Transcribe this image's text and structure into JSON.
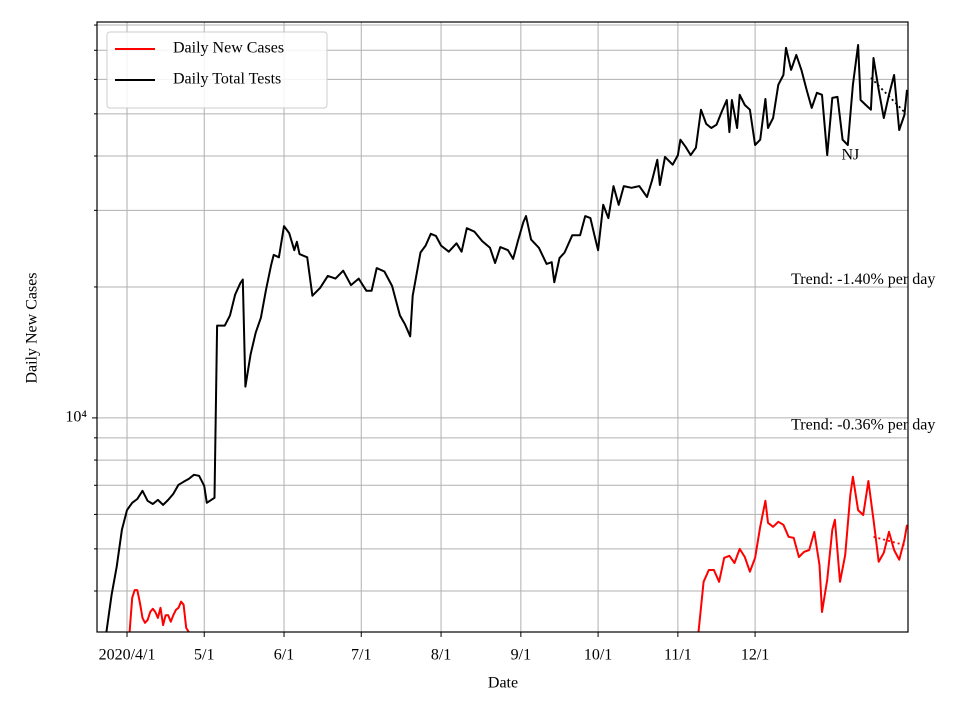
{
  "chart_data": {
    "type": "line",
    "ylabel": "Daily New Cases",
    "xlabel": "Date",
    "log_y": true,
    "grid": true,
    "legend": "upper left",
    "xlim": [
      -11.66,
      303.4
    ],
    "ylim": [
      3220,
      81300
    ],
    "xticks": [
      {
        "value": 0,
        "label": "2020/4/1"
      },
      {
        "value": 30,
        "label": "5/1"
      },
      {
        "value": 61,
        "label": "6/1"
      },
      {
        "value": 91,
        "label": "7/1"
      },
      {
        "value": 122,
        "label": "8/1"
      },
      {
        "value": 153,
        "label": "9/1"
      },
      {
        "value": 183,
        "label": "10/1"
      },
      {
        "value": 214,
        "label": "11/1"
      },
      {
        "value": 244,
        "label": "12/1"
      }
    ],
    "yticks": [
      {
        "value": 10000,
        "label": "10⁴"
      }
    ],
    "yminorticks": [
      4000,
      5000,
      6000,
      7000,
      8000,
      9000,
      20000,
      30000,
      40000,
      50000,
      60000,
      70000,
      80000
    ],
    "series": [
      {
        "name": "Daily New Cases",
        "color": "#ff0000",
        "x": [
          1,
          2,
          3,
          4,
          5,
          6,
          7,
          8,
          9,
          10,
          11,
          12,
          13,
          14,
          15,
          16,
          17,
          18,
          19,
          20,
          21,
          22,
          23,
          24,
          null,
          222,
          224,
          226,
          228,
          230,
          232,
          234,
          236,
          238,
          240,
          242,
          244,
          246,
          248,
          249,
          251,
          253,
          255,
          257,
          259,
          261,
          263,
          265,
          267,
          269,
          270,
          272,
          274,
          275,
          277,
          279,
          281,
          282,
          284,
          286,
          288,
          290,
          292,
          294,
          296,
          298,
          300,
          302,
          303
        ],
        "values": [
          3220,
          3860,
          4020,
          4020,
          3760,
          3470,
          3380,
          3430,
          3580,
          3640,
          3580,
          3470,
          3660,
          3340,
          3520,
          3520,
          3400,
          3520,
          3620,
          3660,
          3780,
          3720,
          3290,
          3220,
          null,
          3220,
          4200,
          4470,
          4470,
          4200,
          4770,
          4820,
          4640,
          5000,
          4790,
          4430,
          4770,
          5620,
          6450,
          5740,
          5620,
          5770,
          5680,
          5330,
          5300,
          4790,
          4920,
          4970,
          5470,
          4590,
          3580,
          4240,
          5530,
          5830,
          4200,
          4840,
          6650,
          7320,
          6140,
          5980,
          7160,
          5830,
          4670,
          4900,
          5470,
          4970,
          4720,
          5240,
          5680
        ]
      },
      {
        "name": "Daily Total Tests",
        "color": "#000000",
        "x": [
          -8,
          -6,
          -4,
          -2,
          0,
          2,
          4,
          6,
          8,
          10,
          12,
          14,
          16,
          18,
          20,
          22,
          24,
          26,
          28,
          30,
          31,
          34,
          35,
          38,
          40,
          42,
          44,
          45,
          46,
          48,
          50,
          52,
          54,
          56,
          57,
          59,
          61,
          63,
          65,
          66,
          67,
          70,
          72,
          75,
          78,
          81,
          84,
          87,
          90,
          93,
          95,
          97,
          100,
          103,
          106,
          108,
          110,
          111,
          114,
          116,
          118,
          120,
          122,
          125,
          128,
          130,
          132,
          135,
          138,
          141,
          143,
          145,
          148,
          150,
          152,
          154,
          155,
          157,
          160,
          163,
          165,
          166,
          168,
          170,
          173,
          176,
          178,
          180,
          182,
          183,
          185,
          187,
          189,
          191,
          193,
          196,
          199,
          202,
          204,
          206,
          207,
          209,
          212,
          214,
          215,
          217,
          219,
          221,
          223,
          225,
          227,
          229,
          231,
          233,
          234,
          235,
          237,
          238,
          240,
          242,
          244,
          246,
          248,
          249,
          251,
          253,
          255,
          256,
          258,
          260,
          262,
          264,
          266,
          268,
          270,
          272,
          274,
          276,
          278,
          280,
          282,
          284,
          285,
          287,
          289,
          290,
          292,
          294,
          296,
          298,
          300,
          302,
          303
        ],
        "values": [
          3220,
          3920,
          4550,
          5530,
          6140,
          6380,
          6510,
          6800,
          6450,
          6340,
          6480,
          6310,
          6480,
          6690,
          7020,
          7130,
          7240,
          7400,
          7360,
          6980,
          6380,
          6550,
          16300,
          16300,
          17200,
          19200,
          20400,
          20800,
          11800,
          14000,
          15700,
          17000,
          19700,
          22500,
          23700,
          23400,
          27600,
          26600,
          24300,
          25400,
          23800,
          23400,
          19100,
          19900,
          21200,
          20900,
          21800,
          20200,
          20900,
          19600,
          19600,
          22100,
          21700,
          20100,
          17200,
          16400,
          15400,
          19100,
          24000,
          24900,
          26500,
          26200,
          24900,
          24100,
          25200,
          24100,
          27300,
          26800,
          25500,
          24600,
          22700,
          24700,
          24300,
          23200,
          25700,
          28200,
          29100,
          25700,
          24600,
          22600,
          22800,
          20500,
          23300,
          24000,
          26300,
          26300,
          29100,
          28800,
          25700,
          24300,
          30900,
          28800,
          34100,
          30900,
          34100,
          33800,
          34100,
          32200,
          35200,
          39200,
          34300,
          39800,
          38200,
          40200,
          43600,
          42000,
          40200,
          41800,
          51100,
          47400,
          46400,
          47200,
          50500,
          53800,
          45400,
          53800,
          46400,
          55300,
          52400,
          51100,
          42400,
          43600,
          54100,
          46400,
          48900,
          58300,
          61400,
          70900,
          63100,
          68300,
          63100,
          56800,
          51600,
          55900,
          55300,
          40200,
          54400,
          54700,
          43600,
          42400,
          58300,
          72000,
          53800,
          52400,
          51100,
          67200,
          56800,
          48900,
          55300,
          61400,
          45900,
          49700,
          56800
        ]
      }
    ],
    "trends": [
      {
        "color": "#000000",
        "x": [
          289,
          302
        ],
        "values": [
          60500,
          50500
        ]
      },
      {
        "color": "#ff0000",
        "x": [
          290,
          302
        ],
        "values": [
          5330,
          5100
        ]
      }
    ],
    "annotations": [
      {
        "text": "NJ",
        "x": 281,
        "y": 40000
      },
      {
        "text": "Trend: -1.40% per day",
        "x": 286,
        "y": 20700
      },
      {
        "text": "Trend: -0.36% per day",
        "x": 286,
        "y": 9600
      }
    ]
  }
}
